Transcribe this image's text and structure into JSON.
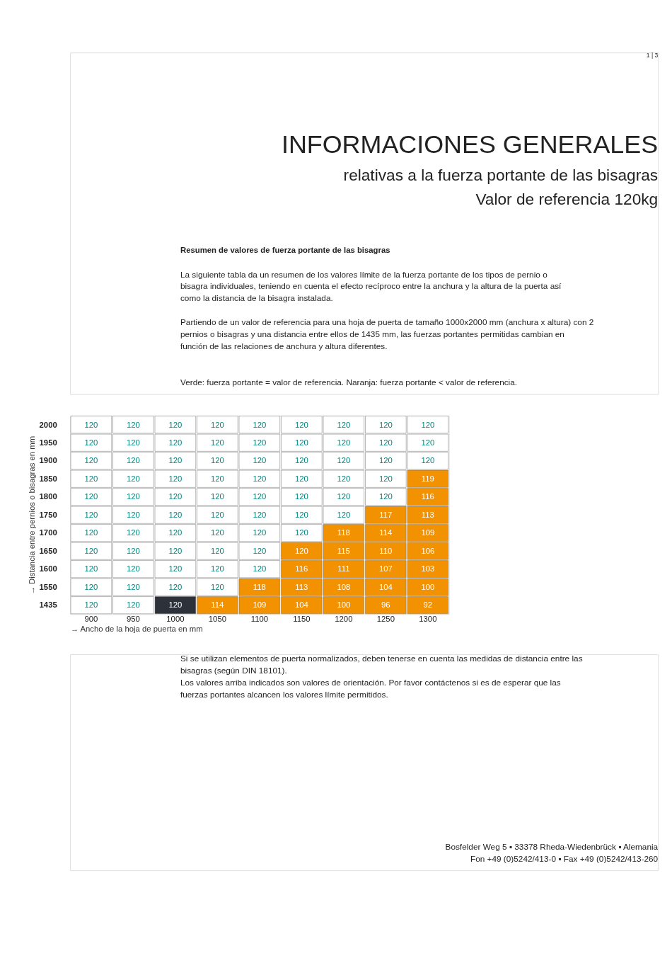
{
  "chart_data": {
    "type": "heatmap",
    "title": "INFORMACIONES GENERALES",
    "subtitle": "relativas a la fuerza portante de las bisagras\nValor de referencia 120kg",
    "xlabel": "→ Ancho de la hoja de puerta en mm",
    "ylabel": "→ Distancia entre pernios o bisagras en mm",
    "categories": [
      "900",
      "950",
      "1000",
      "1050",
      "1100",
      "1150",
      "1200",
      "1250",
      "1300"
    ],
    "y_categories": [
      "2000",
      "1950",
      "1900",
      "1850",
      "1800",
      "1750",
      "1700",
      "1650",
      "1600",
      "1550",
      "1435"
    ],
    "cells": [
      [
        120,
        120,
        120,
        120,
        120,
        120,
        120,
        120,
        120
      ],
      [
        120,
        120,
        120,
        120,
        120,
        120,
        120,
        120,
        120
      ],
      [
        120,
        120,
        120,
        120,
        120,
        120,
        120,
        120,
        120
      ],
      [
        120,
        120,
        120,
        120,
        120,
        120,
        120,
        120,
        119
      ],
      [
        120,
        120,
        120,
        120,
        120,
        120,
        120,
        120,
        116
      ],
      [
        120,
        120,
        120,
        120,
        120,
        120,
        120,
        117,
        113
      ],
      [
        120,
        120,
        120,
        120,
        120,
        120,
        118,
        114,
        109
      ],
      [
        120,
        120,
        120,
        120,
        120,
        120,
        115,
        110,
        106
      ],
      [
        120,
        120,
        120,
        120,
        120,
        116,
        111,
        107,
        103
      ],
      [
        120,
        120,
        120,
        120,
        118,
        113,
        108,
        104,
        100
      ],
      [
        120,
        120,
        120,
        114,
        109,
        104,
        100,
        96,
        92
      ]
    ],
    "colors": [
      [
        "#ffffff",
        "#ffffff",
        "#ffffff",
        "#ffffff",
        "#ffffff",
        "#ffffff",
        "#ffffff",
        "#ffffff",
        "#ffffff"
      ],
      [
        "#ffffff",
        "#ffffff",
        "#ffffff",
        "#ffffff",
        "#ffffff",
        "#ffffff",
        "#ffffff",
        "#ffffff",
        "#ffffff"
      ],
      [
        "#ffffff",
        "#ffffff",
        "#ffffff",
        "#ffffff",
        "#ffffff",
        "#ffffff",
        "#ffffff",
        "#ffffff",
        "#ffffff"
      ],
      [
        "#ffffff",
        "#ffffff",
        "#ffffff",
        "#ffffff",
        "#ffffff",
        "#ffffff",
        "#ffffff",
        "#ffffff",
        "#f39200"
      ],
      [
        "#ffffff",
        "#ffffff",
        "#ffffff",
        "#ffffff",
        "#ffffff",
        "#ffffff",
        "#ffffff",
        "#ffffff",
        "#f39200"
      ],
      [
        "#ffffff",
        "#ffffff",
        "#ffffff",
        "#ffffff",
        "#ffffff",
        "#ffffff",
        "#ffffff",
        "#f39200",
        "#f39200"
      ],
      [
        "#ffffff",
        "#ffffff",
        "#ffffff",
        "#ffffff",
        "#ffffff",
        "#ffffff",
        "#f39200",
        "#f39200",
        "#f39200"
      ],
      [
        "#ffffff",
        "#ffffff",
        "#ffffff",
        "#ffffff",
        "#ffffff",
        "#f39200",
        "#f39200",
        "#f39200",
        "#f39200"
      ],
      [
        "#ffffff",
        "#ffffff",
        "#ffffff",
        "#ffffff",
        "#ffffff",
        "#f39200",
        "#f39200",
        "#f39200",
        "#f39200"
      ],
      [
        "#ffffff",
        "#ffffff",
        "#ffffff",
        "#ffffff",
        "#f39200",
        "#f39200",
        "#f39200",
        "#f39200",
        "#f39200"
      ],
      [
        "#ffffff",
        "#ffffff",
        "#2d3139",
        "#f39200",
        "#f39200",
        "#f39200",
        "#f39200",
        "#f39200",
        "#f39200"
      ]
    ],
    "data_labels": true,
    "annotations": [
      "1 | 3",
      "Resumen de valores de fuerza portante de las bisagras",
      "La siguiente tabla da un resumen de los valores límite de la fuerza portante de los tipos de pernio o bisagra individuales, teniendo en cuenta el efecto recíproco entre la anchura y la altura de la puerta así como la distancia de la bisagra instalada.",
      "Partiendo de un valor de referencia para una hoja de puerta de tamaño 1000x2000 mm (anchura x altura) con 2 pernios o bisagras y una distancia entre ellos de 1435 mm, las fuerzas portantes permitidas cambian en función de las relaciones de anchura y altura diferentes.",
      "Verde: fuerza portante = valor de referencia. Naranja: fuerza portante < valor de referencia.",
      "Si se utilizan elementos de puerta normalizados, deben tenerse en cuenta las medidas de distancia entre las bisagras (según DIN 18101).",
      "Los valores arriba indicados son valores de orientación. Por favor contáctenos si es de esperar que las fuerzas portantes alcancen los valores límite permitidos.",
      "Bosfelder Weg 5 ▪ 33378 Rheda-Wiedenbrück ▪ Alemania",
      "Fon +49 (0)5242/413-0 ▪ Fax +49 (0)5242/413-260"
    ]
  }
}
